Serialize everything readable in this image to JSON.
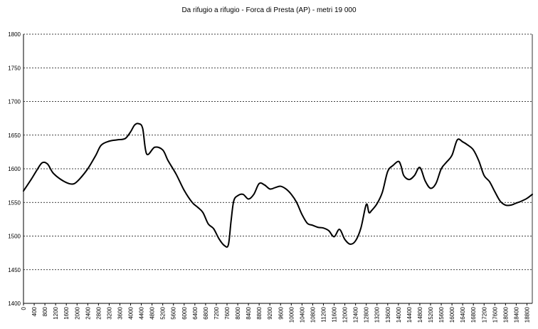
{
  "chart_data": {
    "type": "line",
    "title": "Da rifugio a rifugio - Forca di Presta (AP) - metri 19 000",
    "xlabel": "",
    "ylabel": "",
    "xlim": [
      0,
      19000
    ],
    "ylim": [
      1400,
      1800
    ],
    "y_ticks": [
      1400,
      1450,
      1500,
      1550,
      1600,
      1650,
      1700,
      1750,
      1800
    ],
    "x_ticks": [
      0,
      400,
      800,
      1200,
      1600,
      2000,
      2400,
      2800,
      3200,
      3600,
      4000,
      4400,
      4800,
      5200,
      5600,
      6000,
      6400,
      6800,
      7200,
      7600,
      8000,
      8400,
      8800,
      9200,
      9600,
      10000,
      10400,
      10800,
      11200,
      11600,
      12000,
      12400,
      12800,
      13200,
      13600,
      14000,
      14400,
      14800,
      15200,
      15600,
      16000,
      16400,
      16800,
      17200,
      17600,
      18000,
      18400,
      18800
    ],
    "grid": "horizontal dashed",
    "line_color": "#000000",
    "series": [
      {
        "x": [
          0,
          300,
          500,
          700,
          900,
          1100,
          1400,
          1700,
          1900,
          2100,
          2400,
          2700,
          2900,
          3200,
          3500,
          3800,
          4000,
          4150,
          4300,
          4450,
          4600,
          4900,
          5200,
          5400,
          5700,
          6000,
          6300,
          6500,
          6700,
          6900,
          7100,
          7300,
          7500,
          7650,
          7750,
          7850,
          8000,
          8200,
          8400,
          8600,
          8800,
          9000,
          9200,
          9400,
          9600,
          9800,
          10000,
          10200,
          10400,
          10600,
          10800,
          11000,
          11200,
          11400,
          11600,
          11800,
          12000,
          12200,
          12400,
          12600,
          12800,
          12900,
          13000,
          13200,
          13400,
          13600,
          13800,
          14000,
          14100,
          14200,
          14400,
          14600,
          14800,
          15000,
          15200,
          15400,
          15600,
          15800,
          16000,
          16200,
          16400,
          16600,
          16800,
          17000,
          17200,
          17400,
          17600,
          17800,
          18000,
          18200,
          18400,
          18600,
          18800,
          19000
        ],
        "values": [
          1567,
          1585,
          1598,
          1609,
          1607,
          1594,
          1584,
          1578,
          1578,
          1585,
          1600,
          1620,
          1635,
          1641,
          1643,
          1645,
          1655,
          1665,
          1667,
          1660,
          1622,
          1632,
          1628,
          1612,
          1592,
          1568,
          1550,
          1543,
          1535,
          1518,
          1511,
          1496,
          1486,
          1487,
          1522,
          1552,
          1560,
          1562,
          1555,
          1562,
          1578,
          1576,
          1570,
          1572,
          1574,
          1570,
          1562,
          1550,
          1532,
          1519,
          1516,
          1513,
          1512,
          1508,
          1499,
          1510,
          1495,
          1488,
          1493,
          1512,
          1547,
          1535,
          1538,
          1548,
          1565,
          1596,
          1605,
          1611,
          1604,
          1590,
          1584,
          1590,
          1602,
          1582,
          1571,
          1578,
          1600,
          1610,
          1620,
          1643,
          1640,
          1635,
          1628,
          1612,
          1590,
          1581,
          1566,
          1552,
          1546,
          1546,
          1549,
          1552,
          1556,
          1562
        ]
      }
    ]
  }
}
